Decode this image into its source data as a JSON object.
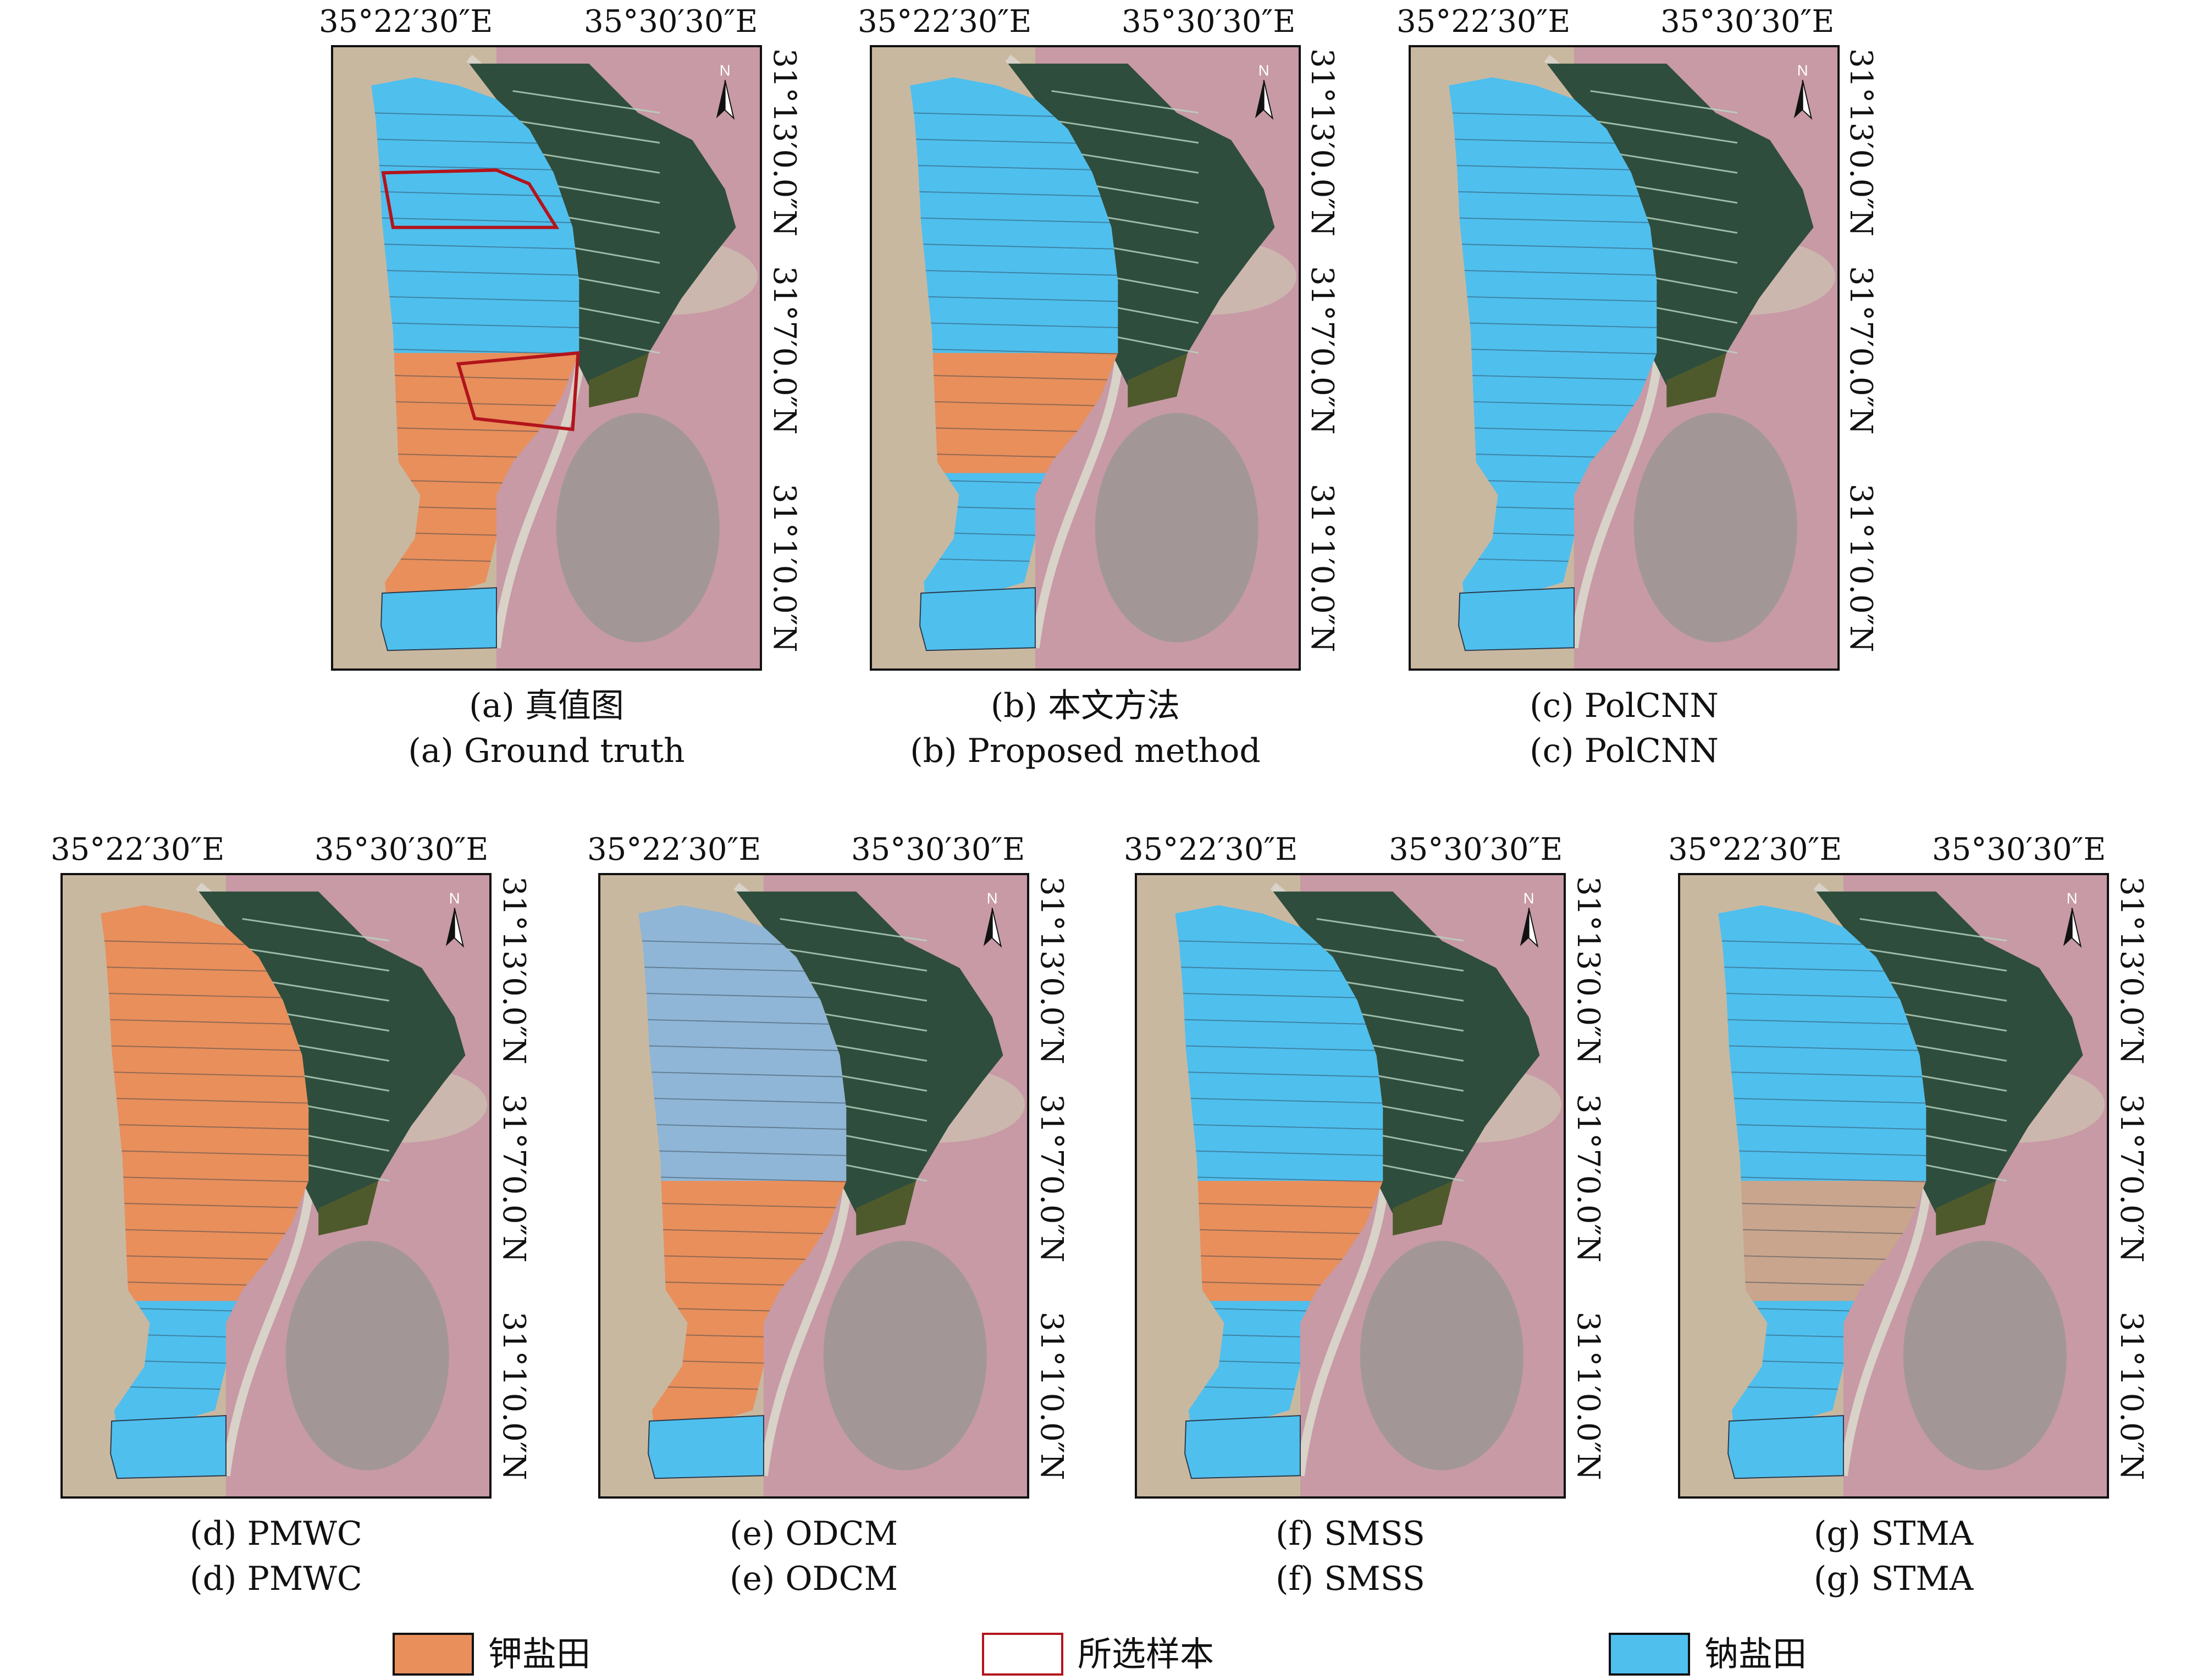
{
  "colors": {
    "potash": "#e88f5c",
    "sodium": "#4fbfee",
    "sample_outline": "#b3141c",
    "evaporation_green": "#2f4d3c",
    "desert": "#c9b8a0",
    "pink_terrain": "#c79aa5"
  },
  "icons": [
    "north-arrow-icon"
  ],
  "north_label": "N",
  "panels": [
    {
      "id": "a",
      "lon1": "35°22′30″E",
      "lon2": "35°30′30″E",
      "lat1": "31°13′0.0″N",
      "lat2": "31°7′0.0″N",
      "lat3": "31°1′0.0″N",
      "cap_cn": "(a) 真值图",
      "cap_en": "(a) Ground truth",
      "scheme": "truth"
    },
    {
      "id": "b",
      "lon1": "35°22′30″E",
      "lon2": "35°30′30″E",
      "lat1": "31°13′0.0″N",
      "lat2": "31°7′0.0″N",
      "lat3": "31°1′0.0″N",
      "cap_cn": "(b) 本文方法",
      "cap_en": "(b) Proposed method",
      "scheme": "proposed"
    },
    {
      "id": "c",
      "lon1": "35°22′30″E",
      "lon2": "35°30′30″E",
      "lat1": "31°13′0.0″N",
      "lat2": "31°7′0.0″N",
      "lat3": "31°1′0.0″N",
      "cap_cn": "(c) PolCNN",
      "cap_en": "(c) PolCNN",
      "scheme": "allsodium"
    },
    {
      "id": "d",
      "lon1": "35°22′30″E",
      "lon2": "35°30′30″E",
      "lat1": "31°13′0.0″N",
      "lat2": "31°7′0.0″N",
      "lat3": "31°1′0.0″N",
      "cap_cn": "(d) PMWC",
      "cap_en": "(d) PMWC",
      "scheme": "allpotash"
    },
    {
      "id": "e",
      "lon1": "35°22′30″E",
      "lon2": "35°30′30″E",
      "lat1": "31°13′0.0″N",
      "lat2": "31°7′0.0″N",
      "lat3": "31°1′0.0″N",
      "cap_cn": "(e) ODCM",
      "cap_en": "(e) ODCM",
      "scheme": "odcm"
    },
    {
      "id": "f",
      "lon1": "35°22′30″E",
      "lon2": "35°30′30″E",
      "lat1": "31°13′0.0″N",
      "lat2": "31°7′0.0″N",
      "lat3": "31°1′0.0″N",
      "cap_cn": "(f) SMSS",
      "cap_en": "(f) SMSS",
      "scheme": "smss"
    },
    {
      "id": "g",
      "lon1": "35°22′30″E",
      "lon2": "35°30′30″E",
      "lat1": "31°13′0.0″N",
      "lat2": "31°7′0.0″N",
      "lat3": "31°1′0.0″N",
      "cap_cn": "(g) STMA",
      "cap_en": "(g) STMA",
      "scheme": "stma"
    }
  ],
  "legend": [
    {
      "label": "钾盐田",
      "kind": "potash"
    },
    {
      "label": "所选样本",
      "kind": "sample"
    },
    {
      "label": "钠盐田",
      "kind": "sodium"
    }
  ]
}
